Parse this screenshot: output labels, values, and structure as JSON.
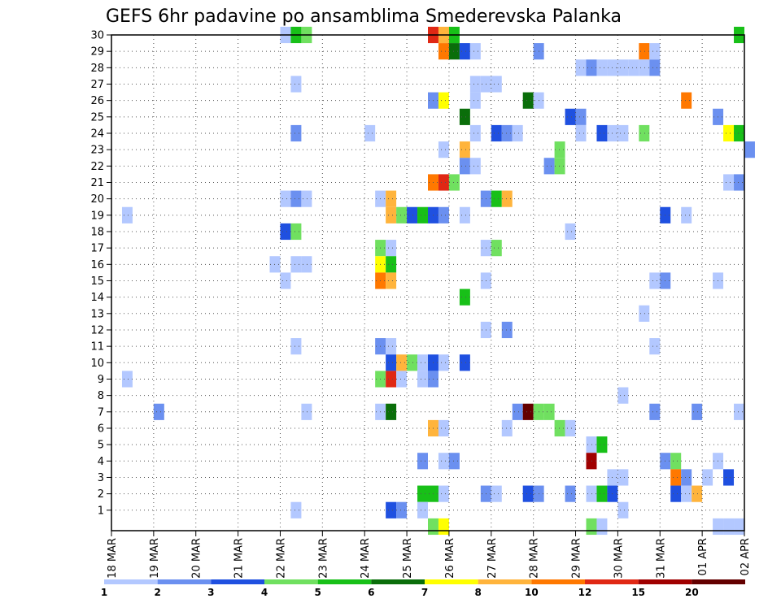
{
  "chart_data": {
    "type": "heatmap",
    "title": "GEFS 6hr padavine po ansamblima Smederevska Palanka",
    "x_tick_labels": [
      "18 MAR",
      "19 MAR",
      "20 MAR",
      "21 MAR",
      "22 MAR",
      "23 MAR",
      "24 MAR",
      "25 MAR",
      "26 MAR",
      "27 MAR",
      "28 MAR",
      "29 MAR",
      "30 MAR",
      "31 MAR",
      "01 APR",
      "02 APR"
    ],
    "y_tick_labels": [
      "1",
      "2",
      "3",
      "4",
      "5",
      "6",
      "7",
      "8",
      "9",
      "10",
      "11",
      "12",
      "13",
      "14",
      "15",
      "16",
      "17",
      "18",
      "19",
      "20",
      "21",
      "22",
      "23",
      "24",
      "25",
      "26",
      "27",
      "28",
      "29",
      "30"
    ],
    "member_range": [
      0,
      30
    ],
    "time_range_days": [
      0,
      15
    ],
    "steps_per_day": 4,
    "grid": true,
    "legend": {
      "placement": "bottom",
      "levels": [
        "1",
        "2",
        "3",
        "4",
        "5",
        "6",
        "7",
        "8",
        "10",
        "12",
        "15",
        "20"
      ],
      "colors": [
        "#b3c8ff",
        "#6b90f0",
        "#1f50e0",
        "#70e060",
        "#18c018",
        "#0a6e0a",
        "#ffff00",
        "#ffb43c",
        "#ff7800",
        "#e02814",
        "#a00000",
        "#640000"
      ]
    },
    "cells": [
      [
        4,
        30,
        0
      ],
      [
        4.25,
        30,
        4
      ],
      [
        4.5,
        30,
        3
      ],
      [
        7.5,
        30,
        9
      ],
      [
        7.75,
        30,
        7
      ],
      [
        8,
        30,
        4
      ],
      [
        14.75,
        30,
        4
      ],
      [
        7.75,
        29,
        8
      ],
      [
        8,
        29,
        5
      ],
      [
        8.25,
        29,
        2
      ],
      [
        8.5,
        29,
        0
      ],
      [
        10,
        29,
        1
      ],
      [
        12.5,
        29,
        8
      ],
      [
        12.75,
        29,
        0
      ],
      [
        11,
        28,
        0
      ],
      [
        11.25,
        28,
        1
      ],
      [
        11.5,
        28,
        0
      ],
      [
        11.75,
        28,
        0
      ],
      [
        12,
        28,
        0
      ],
      [
        12.25,
        28,
        0
      ],
      [
        12.5,
        28,
        0
      ],
      [
        12.75,
        28,
        1
      ],
      [
        4.25,
        27,
        0
      ],
      [
        8.5,
        27,
        0
      ],
      [
        8.75,
        27,
        0
      ],
      [
        9,
        27,
        0
      ],
      [
        7.5,
        26,
        1
      ],
      [
        7.75,
        26,
        6
      ],
      [
        8.5,
        26,
        0
      ],
      [
        9.75,
        26,
        5
      ],
      [
        10,
        26,
        0
      ],
      [
        13.5,
        26,
        8
      ],
      [
        8.25,
        25,
        5
      ],
      [
        10.75,
        25,
        2
      ],
      [
        11,
        25,
        1
      ],
      [
        14.25,
        25,
        1
      ],
      [
        4.25,
        24,
        1
      ],
      [
        6,
        24,
        0
      ],
      [
        8.5,
        24,
        0
      ],
      [
        9,
        24,
        2
      ],
      [
        9.25,
        24,
        1
      ],
      [
        9.5,
        24,
        0
      ],
      [
        11,
        24,
        0
      ],
      [
        11.5,
        24,
        2
      ],
      [
        11.75,
        24,
        0
      ],
      [
        12,
        24,
        0
      ],
      [
        12.5,
        24,
        3
      ],
      [
        14.5,
        24,
        6
      ],
      [
        14.75,
        24,
        4
      ],
      [
        7.75,
        23,
        0
      ],
      [
        8.25,
        23,
        7
      ],
      [
        10.5,
        23,
        3
      ],
      [
        15,
        23,
        1
      ],
      [
        8.25,
        22,
        1
      ],
      [
        8.5,
        22,
        0
      ],
      [
        10.25,
        22,
        1
      ],
      [
        10.5,
        22,
        3
      ],
      [
        7.5,
        21,
        8
      ],
      [
        7.75,
        21,
        9
      ],
      [
        8,
        21,
        3
      ],
      [
        14.5,
        21,
        0
      ],
      [
        14.75,
        21,
        1
      ],
      [
        4,
        20,
        0
      ],
      [
        4.25,
        20,
        1
      ],
      [
        4.5,
        20,
        0
      ],
      [
        6.25,
        20,
        0
      ],
      [
        6.5,
        20,
        7
      ],
      [
        8.75,
        20,
        1
      ],
      [
        9,
        20,
        4
      ],
      [
        9.25,
        20,
        7
      ],
      [
        0.25,
        19,
        0
      ],
      [
        6.5,
        19,
        7
      ],
      [
        6.75,
        19,
        3
      ],
      [
        7,
        19,
        2
      ],
      [
        7.25,
        19,
        4
      ],
      [
        7.5,
        19,
        2
      ],
      [
        7.75,
        19,
        1
      ],
      [
        8.25,
        19,
        0
      ],
      [
        13,
        19,
        2
      ],
      [
        13.5,
        19,
        0
      ],
      [
        4,
        18,
        2
      ],
      [
        4.25,
        18,
        3
      ],
      [
        10.75,
        18,
        0
      ],
      [
        6.25,
        17,
        3
      ],
      [
        6.5,
        17,
        0
      ],
      [
        8.75,
        17,
        0
      ],
      [
        9,
        17,
        3
      ],
      [
        3.75,
        16,
        0
      ],
      [
        4.25,
        16,
        0
      ],
      [
        4.5,
        16,
        0
      ],
      [
        6.25,
        16,
        6
      ],
      [
        6.5,
        16,
        4
      ],
      [
        4,
        15,
        0
      ],
      [
        6.25,
        15,
        8
      ],
      [
        6.5,
        15,
        7
      ],
      [
        8.75,
        15,
        0
      ],
      [
        12.75,
        15,
        0
      ],
      [
        13,
        15,
        1
      ],
      [
        14.25,
        15,
        0
      ],
      [
        8.25,
        14,
        4
      ],
      [
        12.5,
        13,
        0
      ],
      [
        8.75,
        12,
        0
      ],
      [
        9.25,
        12,
        1
      ],
      [
        4.25,
        11,
        0
      ],
      [
        6.25,
        11,
        1
      ],
      [
        6.5,
        11,
        0
      ],
      [
        12.75,
        11,
        0
      ],
      [
        6.5,
        10,
        2
      ],
      [
        6.75,
        10,
        7
      ],
      [
        7,
        10,
        3
      ],
      [
        7.25,
        10,
        0
      ],
      [
        7.5,
        10,
        2
      ],
      [
        7.75,
        10,
        0
      ],
      [
        8.25,
        10,
        2
      ],
      [
        0.25,
        9,
        0
      ],
      [
        6.25,
        9,
        3
      ],
      [
        6.5,
        9,
        9
      ],
      [
        6.75,
        9,
        0
      ],
      [
        7.25,
        9,
        0
      ],
      [
        7.5,
        9,
        1
      ],
      [
        12,
        8,
        0
      ],
      [
        1,
        7,
        1
      ],
      [
        4.5,
        7,
        0
      ],
      [
        6.25,
        7,
        0
      ],
      [
        6.5,
        7,
        5
      ],
      [
        9.5,
        7,
        1
      ],
      [
        9.75,
        7,
        11
      ],
      [
        10,
        7,
        3
      ],
      [
        10.25,
        7,
        3
      ],
      [
        12.75,
        7,
        1
      ],
      [
        13.75,
        7,
        1
      ],
      [
        14.75,
        7,
        0
      ],
      [
        7.5,
        6,
        7
      ],
      [
        7.75,
        6,
        0
      ],
      [
        9.25,
        6,
        0
      ],
      [
        10.5,
        6,
        3
      ],
      [
        10.75,
        6,
        0
      ],
      [
        11.25,
        5,
        0
      ],
      [
        11.5,
        5,
        4
      ],
      [
        7.25,
        4,
        1
      ],
      [
        7.75,
        4,
        0
      ],
      [
        8,
        4,
        1
      ],
      [
        11.25,
        4,
        10
      ],
      [
        13,
        4,
        1
      ],
      [
        13.25,
        4,
        3
      ],
      [
        14.25,
        4,
        0
      ],
      [
        11.75,
        3,
        0
      ],
      [
        12,
        3,
        0
      ],
      [
        13.25,
        3,
        8
      ],
      [
        13.5,
        3,
        1
      ],
      [
        14,
        3,
        0
      ],
      [
        14.5,
        3,
        2
      ],
      [
        7.25,
        2,
        4
      ],
      [
        7.5,
        2,
        4
      ],
      [
        7.75,
        2,
        0
      ],
      [
        8.75,
        2,
        1
      ],
      [
        9,
        2,
        0
      ],
      [
        9.75,
        2,
        2
      ],
      [
        10,
        2,
        1
      ],
      [
        10.75,
        2,
        1
      ],
      [
        11.25,
        2,
        0
      ],
      [
        11.5,
        2,
        4
      ],
      [
        11.75,
        2,
        2
      ],
      [
        13.25,
        2,
        2
      ],
      [
        13.5,
        2,
        0
      ],
      [
        13.75,
        2,
        7
      ],
      [
        4.25,
        1,
        0
      ],
      [
        6.5,
        1,
        2
      ],
      [
        6.75,
        1,
        1
      ],
      [
        7.25,
        1,
        0
      ],
      [
        12,
        1,
        0
      ],
      [
        7.5,
        0,
        3
      ],
      [
        7.75,
        0,
        6
      ],
      [
        11.25,
        0,
        3
      ],
      [
        11.5,
        0,
        0
      ],
      [
        14.25,
        0,
        0
      ],
      [
        14.5,
        0,
        0
      ],
      [
        14.75,
        0,
        0
      ]
    ]
  }
}
